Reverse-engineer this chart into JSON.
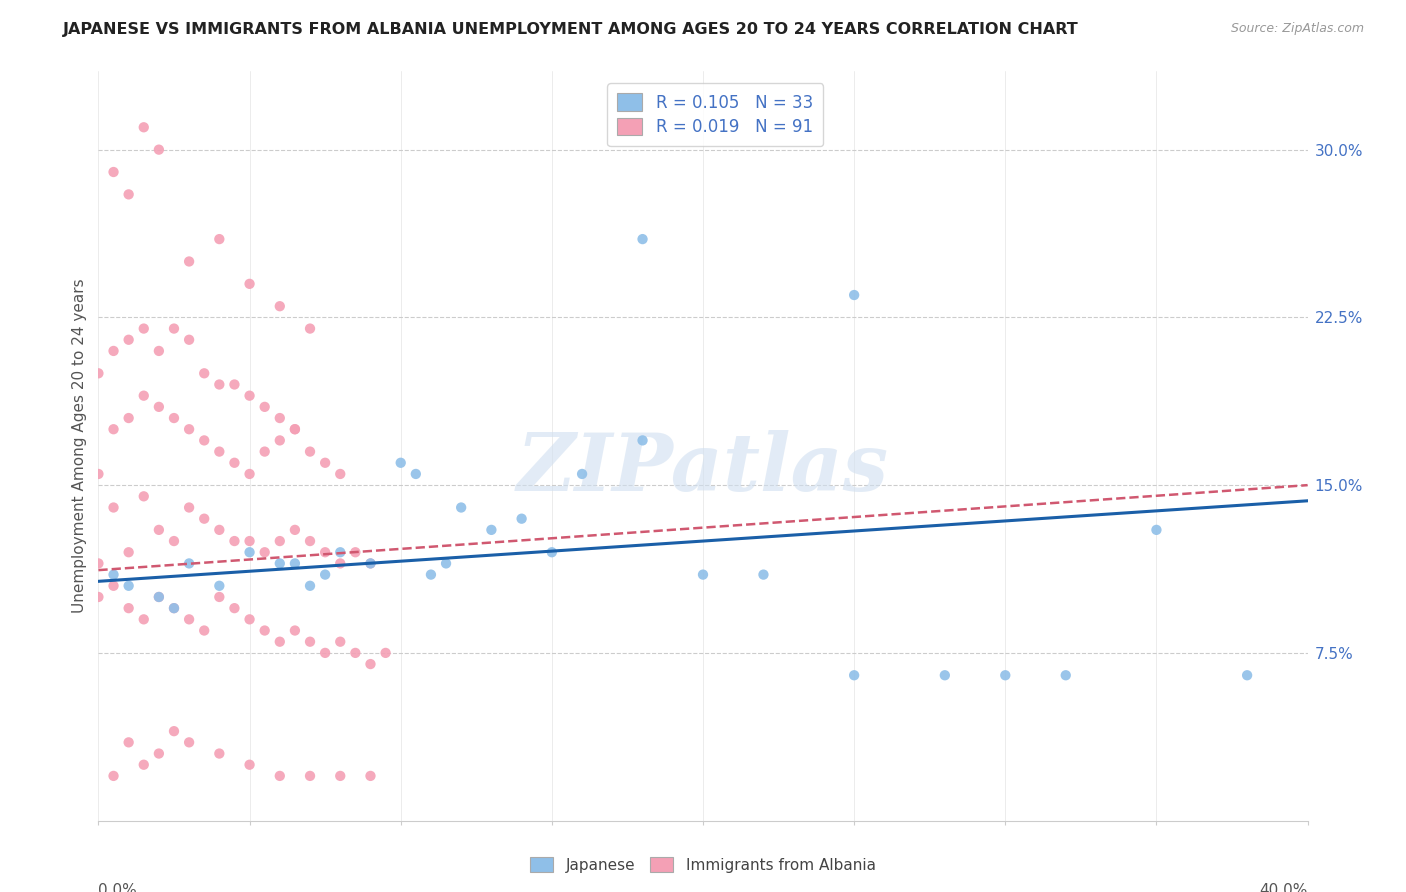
{
  "title": "JAPANESE VS IMMIGRANTS FROM ALBANIA UNEMPLOYMENT AMONG AGES 20 TO 24 YEARS CORRELATION CHART",
  "source": "Source: ZipAtlas.com",
  "ylabel": "Unemployment Among Ages 20 to 24 years",
  "yticks": [
    "7.5%",
    "15.0%",
    "22.5%",
    "30.0%"
  ],
  "ytick_vals": [
    0.075,
    0.15,
    0.225,
    0.3
  ],
  "xlim": [
    0.0,
    0.4
  ],
  "ylim": [
    0.0,
    0.335
  ],
  "watermark": "ZIPatlas",
  "legend_r1": "R = 0.105",
  "legend_n1": "N = 33",
  "legend_r2": "R = 0.019",
  "legend_n2": "N = 91",
  "japanese_color": "#8fbfe8",
  "albania_color": "#f4a0b5",
  "trendline_japanese_color": "#1a5fa8",
  "trendline_albania_color": "#d05870",
  "jap_trend_x0": 0.0,
  "jap_trend_x1": 0.4,
  "jap_trend_y0": 0.107,
  "jap_trend_y1": 0.143,
  "alb_trend_x0": 0.0,
  "alb_trend_x1": 0.4,
  "alb_trend_y0": 0.112,
  "alb_trend_y1": 0.15,
  "japanese_x": [
    0.005,
    0.01,
    0.02,
    0.025,
    0.03,
    0.04,
    0.05,
    0.06,
    0.065,
    0.07,
    0.075,
    0.08,
    0.09,
    0.1,
    0.105,
    0.11,
    0.115,
    0.12,
    0.13,
    0.14,
    0.15,
    0.16,
    0.18,
    0.2,
    0.22,
    0.25,
    0.28,
    0.3,
    0.32,
    0.35,
    0.38,
    0.25,
    0.18
  ],
  "japanese_y": [
    0.11,
    0.105,
    0.1,
    0.095,
    0.115,
    0.105,
    0.12,
    0.115,
    0.115,
    0.105,
    0.11,
    0.12,
    0.115,
    0.16,
    0.155,
    0.11,
    0.115,
    0.14,
    0.13,
    0.135,
    0.12,
    0.155,
    0.17,
    0.11,
    0.11,
    0.065,
    0.065,
    0.065,
    0.065,
    0.13,
    0.065,
    0.235,
    0.26
  ],
  "albania_x": [
    0.0,
    0.005,
    0.01,
    0.015,
    0.02,
    0.025,
    0.03,
    0.035,
    0.04,
    0.045,
    0.05,
    0.055,
    0.06,
    0.065,
    0.07,
    0.075,
    0.08,
    0.085,
    0.09,
    0.0,
    0.005,
    0.01,
    0.015,
    0.02,
    0.025,
    0.03,
    0.035,
    0.04,
    0.045,
    0.05,
    0.055,
    0.06,
    0.065,
    0.07,
    0.075,
    0.08,
    0.085,
    0.09,
    0.095,
    0.0,
    0.005,
    0.01,
    0.015,
    0.02,
    0.025,
    0.03,
    0.035,
    0.04,
    0.045,
    0.05,
    0.055,
    0.06,
    0.065,
    0.07,
    0.075,
    0.08,
    0.0,
    0.005,
    0.01,
    0.015,
    0.02,
    0.025,
    0.03,
    0.035,
    0.04,
    0.045,
    0.05,
    0.055,
    0.06,
    0.065,
    0.005,
    0.01,
    0.015,
    0.02,
    0.03,
    0.04,
    0.05,
    0.06,
    0.07,
    0.005,
    0.01,
    0.015,
    0.02,
    0.025,
    0.03,
    0.04,
    0.05,
    0.06,
    0.07,
    0.08,
    0.09
  ],
  "albania_y": [
    0.115,
    0.14,
    0.12,
    0.145,
    0.13,
    0.125,
    0.14,
    0.135,
    0.13,
    0.125,
    0.125,
    0.12,
    0.125,
    0.13,
    0.125,
    0.12,
    0.115,
    0.12,
    0.115,
    0.1,
    0.105,
    0.095,
    0.09,
    0.1,
    0.095,
    0.09,
    0.085,
    0.1,
    0.095,
    0.09,
    0.085,
    0.08,
    0.085,
    0.08,
    0.075,
    0.08,
    0.075,
    0.07,
    0.075,
    0.155,
    0.175,
    0.18,
    0.19,
    0.185,
    0.18,
    0.175,
    0.17,
    0.165,
    0.16,
    0.155,
    0.165,
    0.17,
    0.175,
    0.165,
    0.16,
    0.155,
    0.2,
    0.21,
    0.215,
    0.22,
    0.21,
    0.22,
    0.215,
    0.2,
    0.195,
    0.195,
    0.19,
    0.185,
    0.18,
    0.175,
    0.29,
    0.28,
    0.31,
    0.3,
    0.25,
    0.26,
    0.24,
    0.23,
    0.22,
    0.02,
    0.035,
    0.025,
    0.03,
    0.04,
    0.035,
    0.03,
    0.025,
    0.02,
    0.02,
    0.02,
    0.02
  ]
}
